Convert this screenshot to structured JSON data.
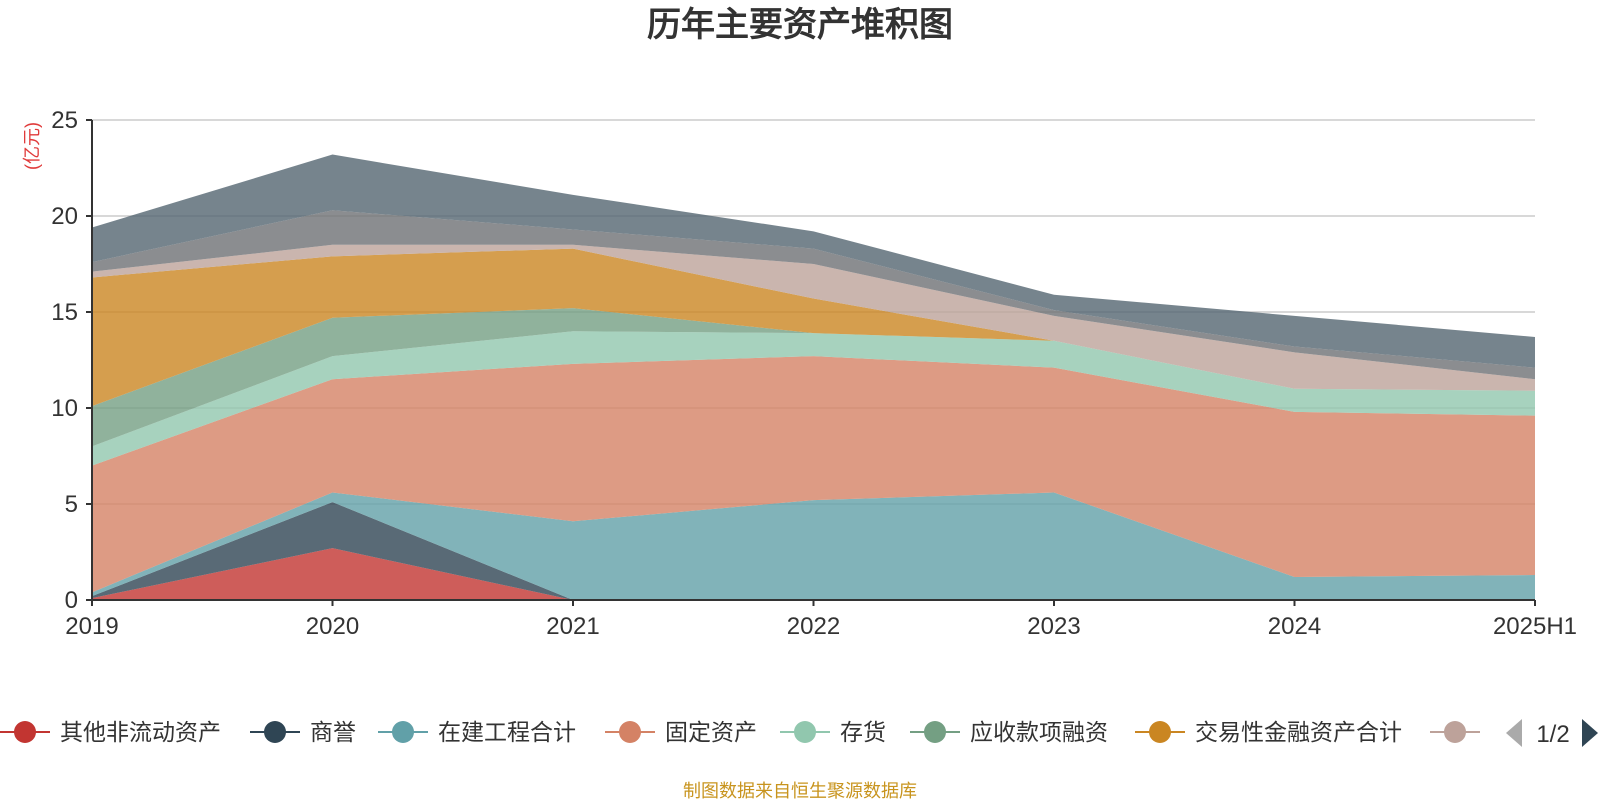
{
  "chart_data": {
    "type": "area",
    "stacked": true,
    "title": "历年主要资产堆积图",
    "ylabel": "(亿元)",
    "xlabel": "",
    "categories": [
      "2019",
      "2020",
      "2021",
      "2022",
      "2023",
      "2024",
      "2025H1"
    ],
    "ylim": [
      0,
      25
    ],
    "yticks": [
      0,
      5,
      10,
      15,
      20,
      25
    ],
    "grid": true,
    "legend_position": "bottom",
    "legend_page": "1/2",
    "series": [
      {
        "name": "其他非流动资产",
        "color": "#c23531",
        "values": [
          0.1,
          2.7,
          0.0,
          0.0,
          0.0,
          0.0,
          0.0
        ]
      },
      {
        "name": "商誉",
        "color": "#2f4554",
        "values": [
          0.1,
          2.4,
          0.0,
          0.0,
          0.0,
          0.0,
          0.0
        ]
      },
      {
        "name": "在建工程合计",
        "color": "#61a0a8",
        "values": [
          0.2,
          0.5,
          4.1,
          5.2,
          5.6,
          1.2,
          1.3
        ]
      },
      {
        "name": "固定资产",
        "color": "#d48265",
        "values": [
          6.6,
          5.9,
          8.2,
          7.5,
          6.5,
          8.6,
          8.3
        ]
      },
      {
        "name": "存货",
        "color": "#91c7ae",
        "values": [
          1.0,
          1.2,
          1.7,
          1.2,
          1.4,
          1.2,
          1.3
        ]
      },
      {
        "name": "应收款项融资",
        "color": "#749f83",
        "values": [
          2.1,
          2.0,
          1.2,
          0.0,
          0.0,
          0.0,
          0.0
        ]
      },
      {
        "name": "交易性金融资产合计",
        "color": "#ca8622",
        "values": [
          6.7,
          3.2,
          3.1,
          1.8,
          0.0,
          0.0,
          0.0
        ]
      },
      {
        "color": "#bda29a",
        "values": [
          0.3,
          0.6,
          0.2,
          1.8,
          1.3,
          1.9,
          0.6
        ]
      },
      {
        "color": "#6e7074",
        "values": [
          0.5,
          1.8,
          0.8,
          0.8,
          0.3,
          0.3,
          0.6
        ]
      },
      {
        "color": "#546570",
        "values": [
          1.8,
          2.9,
          1.8,
          0.9,
          0.8,
          1.6,
          1.6
        ]
      }
    ]
  },
  "footer": {
    "source_text": "制图数据来自恒生聚源数据库"
  }
}
